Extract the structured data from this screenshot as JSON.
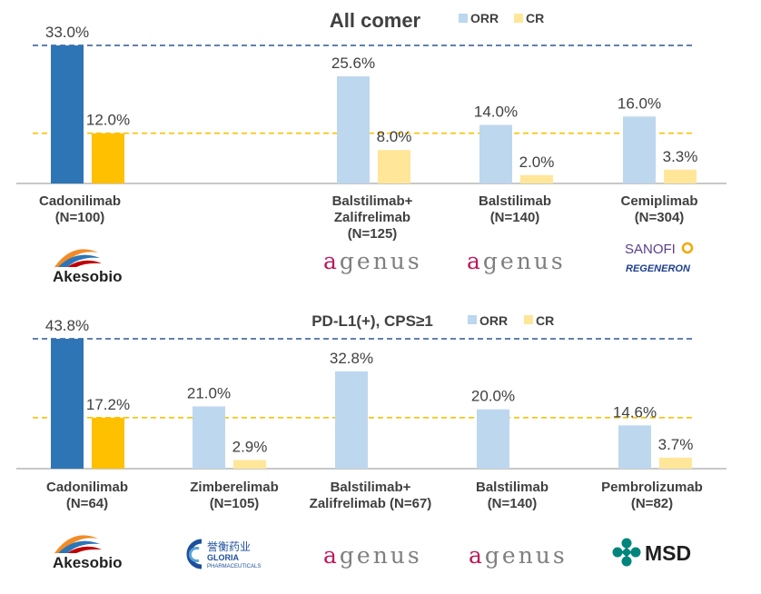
{
  "chart_data": [
    {
      "type": "bar",
      "title": "All comer",
      "legend": [
        "ORR",
        "CR"
      ],
      "legend_placement": "top-right",
      "categories": [
        [
          "Cadonilimab",
          "(N=100)"
        ],
        [
          "Balstilimab+",
          "Zalifrelimab",
          "(N=125)"
        ],
        [
          "Balstilimab",
          "(N=140)"
        ],
        [
          "Cemiplimab",
          "(N=304)"
        ]
      ],
      "series": [
        {
          "name": "ORR",
          "values": [
            33.0,
            25.6,
            14.0,
            16.0
          ],
          "labels": [
            "33.0%",
            "25.6%",
            "14.0%",
            "16.0%"
          ]
        },
        {
          "name": "CR",
          "values": [
            12.0,
            8.0,
            2.0,
            3.3
          ],
          "labels": [
            "12.0%",
            "8.0%",
            "2.0%",
            "3.3%"
          ]
        }
      ],
      "reference_lines": [
        33.0,
        12.0
      ],
      "ylim": [
        0,
        33.0
      ],
      "grid": false
    },
    {
      "type": "bar",
      "title": "PD-L1(+), CPS≥1",
      "legend": [
        "ORR",
        "CR"
      ],
      "legend_placement": "top-right",
      "categories": [
        [
          "Cadonilimab",
          "(N=64)"
        ],
        [
          "Zimberelimab",
          "(N=105)"
        ],
        [
          "Balstilimab+",
          "Zalifrelimab (N=67)"
        ],
        [
          "Balstilimab",
          "(N=140)"
        ],
        [
          "Pembrolizumab",
          "(N=82)"
        ]
      ],
      "series": [
        {
          "name": "ORR",
          "values": [
            43.8,
            21.0,
            32.8,
            20.0,
            14.6
          ],
          "labels": [
            "43.8%",
            "21.0%",
            "32.8%",
            "20.0%",
            "14.6%"
          ]
        },
        {
          "name": "CR",
          "values": [
            17.2,
            2.9,
            null,
            null,
            3.7
          ],
          "labels": [
            "17.2%",
            "2.9%",
            "",
            "",
            "3.7%"
          ]
        }
      ],
      "reference_lines": [
        43.8,
        17.2
      ],
      "ylim": [
        0,
        43.8
      ],
      "grid": false
    }
  ],
  "colors": {
    "highlight_orr": "#2e75b6",
    "highlight_cr": "#ffc000",
    "orr": "#bdd7ee",
    "cr": "#ffe699",
    "ref_orr": "#2f5597",
    "ref_cr": "#ffc000",
    "axis": "#a6a6a6",
    "text": "#404040"
  },
  "logos": {
    "top": [
      "Akesobio",
      "agenus",
      "agenus",
      "SANOFI|REGENERON"
    ],
    "bottom": [
      "Akesobio",
      "誉衡药业|GLORIA|PHARMACEUTICALS",
      "agenus",
      "agenus",
      "MSD"
    ]
  }
}
